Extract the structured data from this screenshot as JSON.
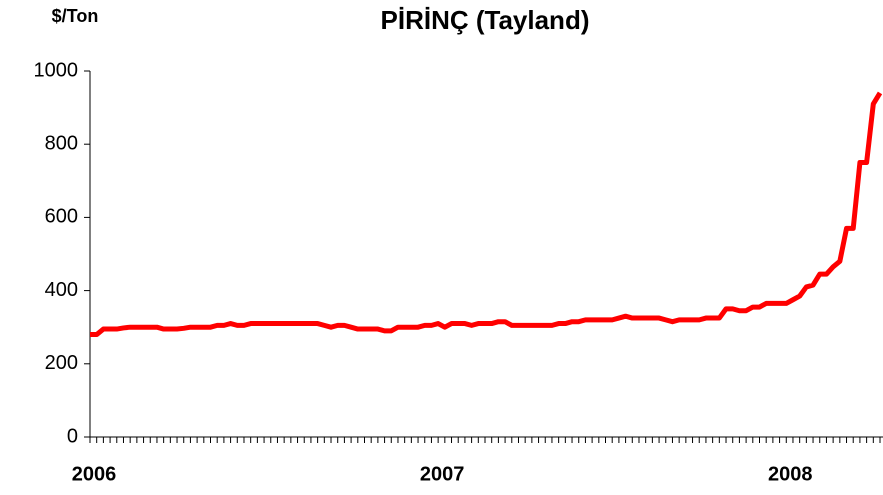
{
  "chart_data": {
    "type": "line",
    "title": "PİRİNÇ (Tayland)",
    "y_label": "$/Ton",
    "categories": [
      "2006",
      null,
      null,
      null,
      null,
      null,
      null,
      null,
      null,
      null,
      null,
      null,
      null,
      null,
      null,
      null,
      null,
      null,
      null,
      null,
      null,
      null,
      null,
      null,
      null,
      null,
      null,
      null,
      null,
      null,
      null,
      null,
      null,
      null,
      null,
      null,
      null,
      null,
      null,
      null,
      null,
      null,
      null,
      null,
      null,
      null,
      null,
      null,
      null,
      null,
      null,
      null,
      "2007",
      null,
      null,
      null,
      null,
      null,
      null,
      null,
      null,
      null,
      null,
      null,
      null,
      null,
      null,
      null,
      null,
      null,
      null,
      null,
      null,
      null,
      null,
      null,
      null,
      null,
      null,
      null,
      null,
      null,
      null,
      null,
      null,
      null,
      null,
      null,
      null,
      null,
      null,
      null,
      null,
      null,
      null,
      null,
      null,
      null,
      null,
      null,
      null,
      null,
      null,
      null,
      "2008",
      null,
      null,
      null,
      null,
      null,
      null,
      null,
      null,
      null,
      null,
      null,
      null,
      null,
      null
    ],
    "series": [
      {
        "name": "PİRİNÇ (Tayland)",
        "color": "#ff0000",
        "values": [
          280,
          280,
          295,
          295,
          295,
          298,
          300,
          300,
          300,
          300,
          300,
          295,
          295,
          295,
          297,
          300,
          300,
          300,
          300,
          305,
          305,
          310,
          305,
          305,
          310,
          310,
          310,
          310,
          310,
          310,
          310,
          310,
          310,
          310,
          310,
          305,
          300,
          305,
          305,
          300,
          295,
          295,
          295,
          295,
          290,
          290,
          300,
          300,
          300,
          300,
          305,
          305,
          310,
          300,
          310,
          310,
          310,
          305,
          310,
          310,
          310,
          315,
          315,
          305,
          305,
          305,
          305,
          305,
          305,
          305,
          310,
          310,
          315,
          315,
          320,
          320,
          320,
          320,
          320,
          325,
          330,
          325,
          325,
          325,
          325,
          325,
          320,
          315,
          320,
          320,
          320,
          320,
          325,
          325,
          325,
          350,
          350,
          345,
          345,
          355,
          355,
          365,
          365,
          365,
          365,
          375,
          385,
          410,
          415,
          445,
          445,
          465,
          480,
          570,
          570,
          750,
          750,
          910,
          940
        ]
      }
    ],
    "ylim": [
      0,
      1000
    ],
    "yticks": [
      0,
      200,
      400,
      600,
      800,
      1000
    ],
    "grid": false
  }
}
